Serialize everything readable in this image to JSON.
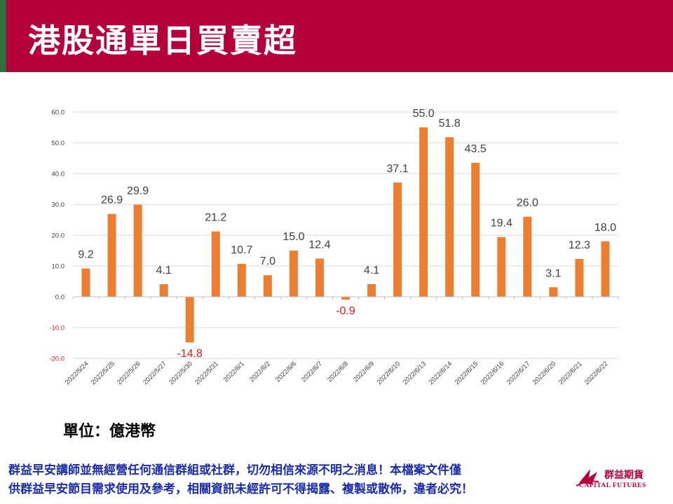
{
  "header": {
    "title": "港股通單日買賣超"
  },
  "unit_label": "單位：億港幣",
  "disclaimer": [
    "群益早安講師並無經營任何通信群組或社群，切勿相信來源不明之消息！本檔案文件僅",
    "供群益早安節目需求使用及參考，相關資訊未經許可不得揭露、複製或散佈，違者必究！"
  ],
  "logo": {
    "name_cn": "群益期貨",
    "name_en": "CAPITAL FUTURES"
  },
  "colors": {
    "header": "#b4003a",
    "header_stripe": "#2f6f3e",
    "bar": "#ed7d31",
    "positive_label": "#404040",
    "negative_label": "#e0191f",
    "disclaimer": "#1a2ca8"
  },
  "chart_data": {
    "type": "bar",
    "title": "",
    "xlabel": "",
    "ylabel": "",
    "ylim": [
      -20,
      60
    ],
    "yticks": [
      "60.0",
      "50.0",
      "40.0",
      "30.0",
      "20.0",
      "10.0",
      "0.0",
      "-10.0",
      "-20.0"
    ],
    "grid": true,
    "legend": "none",
    "categories": [
      "2022/5/24",
      "2022/5/25",
      "2022/5/26",
      "2022/5/27",
      "2022/5/30",
      "2022/5/31",
      "2022/6/1",
      "2022/6/2",
      "2022/6/6",
      "2022/6/7",
      "2022/6/8",
      "2022/6/9",
      "2022/6/10",
      "2022/6/13",
      "2022/6/14",
      "2022/6/15",
      "2022/6/16",
      "2022/6/17",
      "2022/6/20",
      "2022/6/21",
      "2022/6/22"
    ],
    "values": [
      9.2,
      26.9,
      29.9,
      4.1,
      -14.8,
      21.2,
      10.7,
      7.0,
      15.0,
      12.4,
      -0.9,
      4.1,
      37.1,
      55.0,
      51.8,
      43.5,
      19.4,
      26.0,
      3.1,
      12.3,
      18.0
    ],
    "labels": [
      "9.2",
      "26.9",
      "29.9",
      "4.1",
      "-14.8",
      "21.2",
      "10.7",
      "7.0",
      "15.0",
      "12.4",
      "-0.9",
      "4.1",
      "37.1",
      "55.0",
      "51.8",
      "43.5",
      "19.4",
      "26.0",
      "3.1",
      "12.3",
      "18.0"
    ]
  }
}
